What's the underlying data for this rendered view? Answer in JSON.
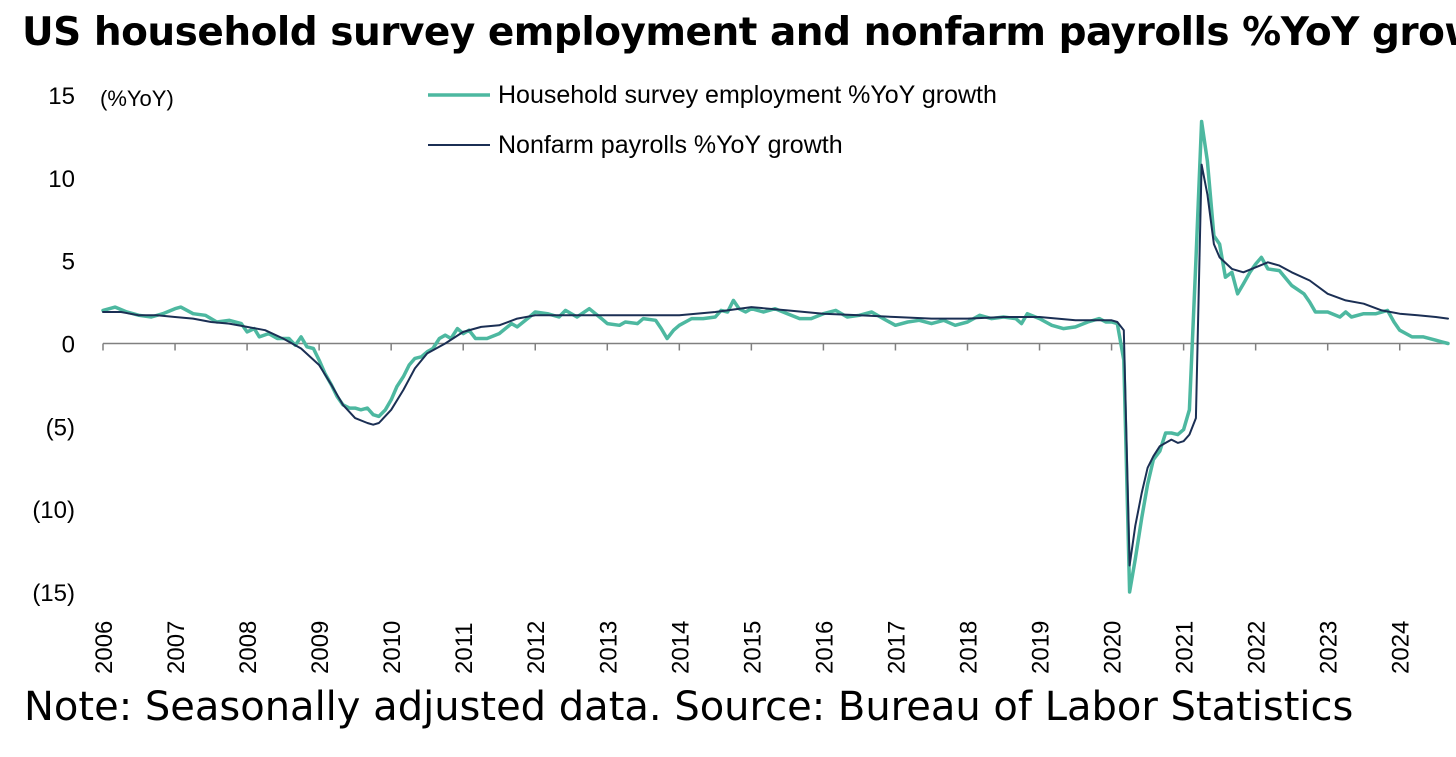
{
  "title": "US household survey employment and nonfarm payrolls %YoY growth",
  "note": "Note: Seasonally adjusted data. Source: Bureau of Labor Statistics",
  "colors": {
    "household": "#4db8a0",
    "nonfarm": "#1b2f54",
    "axis": "#808080"
  },
  "chart_data": {
    "type": "line",
    "ylabel": "(%YoY)",
    "ylim": [
      -15,
      15
    ],
    "yticks": [
      15,
      10,
      5,
      0,
      -5,
      -10,
      -15
    ],
    "ytick_labels": [
      "15",
      "10",
      "5",
      "0",
      "(5)",
      "(10)",
      "(15)"
    ],
    "xlim": [
      2006.0,
      2024.67
    ],
    "xticks": [
      "2006",
      "2007",
      "2008",
      "2009",
      "2010",
      "2011",
      "2012",
      "2013",
      "2014",
      "2015",
      "2016",
      "2017",
      "2018",
      "2019",
      "2020",
      "2021",
      "2022",
      "2023",
      "2024"
    ],
    "legend_position": "top-center",
    "series": [
      {
        "name": "Household survey employment %YoY growth",
        "color": "#4db8a0",
        "points": [
          [
            2006.0,
            2.0
          ],
          [
            2006.17,
            2.2
          ],
          [
            2006.33,
            1.9
          ],
          [
            2006.5,
            1.7
          ],
          [
            2006.67,
            1.6
          ],
          [
            2006.83,
            1.8
          ],
          [
            2007.0,
            2.1
          ],
          [
            2007.08,
            2.2
          ],
          [
            2007.25,
            1.8
          ],
          [
            2007.42,
            1.7
          ],
          [
            2007.58,
            1.3
          ],
          [
            2007.75,
            1.4
          ],
          [
            2007.92,
            1.2
          ],
          [
            2008.0,
            0.7
          ],
          [
            2008.1,
            0.9
          ],
          [
            2008.17,
            0.4
          ],
          [
            2008.3,
            0.6
          ],
          [
            2008.42,
            0.3
          ],
          [
            2008.58,
            0.3
          ],
          [
            2008.67,
            -0.1
          ],
          [
            2008.75,
            0.4
          ],
          [
            2008.83,
            -0.2
          ],
          [
            2008.92,
            -0.3
          ],
          [
            2009.0,
            -1.0
          ],
          [
            2009.08,
            -1.8
          ],
          [
            2009.17,
            -2.5
          ],
          [
            2009.25,
            -3.2
          ],
          [
            2009.33,
            -3.7
          ],
          [
            2009.42,
            -3.9
          ],
          [
            2009.5,
            -3.9
          ],
          [
            2009.58,
            -4.0
          ],
          [
            2009.67,
            -3.9
          ],
          [
            2009.75,
            -4.3
          ],
          [
            2009.83,
            -4.4
          ],
          [
            2009.92,
            -4.0
          ],
          [
            2010.0,
            -3.4
          ],
          [
            2010.08,
            -2.6
          ],
          [
            2010.17,
            -2.0
          ],
          [
            2010.25,
            -1.3
          ],
          [
            2010.33,
            -0.9
          ],
          [
            2010.42,
            -0.8
          ],
          [
            2010.5,
            -0.5
          ],
          [
            2010.58,
            -0.3
          ],
          [
            2010.67,
            0.3
          ],
          [
            2010.75,
            0.5
          ],
          [
            2010.83,
            0.3
          ],
          [
            2010.92,
            0.9
          ],
          [
            2011.0,
            0.6
          ],
          [
            2011.08,
            0.8
          ],
          [
            2011.17,
            0.3
          ],
          [
            2011.33,
            0.3
          ],
          [
            2011.5,
            0.6
          ],
          [
            2011.67,
            1.2
          ],
          [
            2011.75,
            1.0
          ],
          [
            2011.92,
            1.6
          ],
          [
            2012.0,
            1.9
          ],
          [
            2012.17,
            1.8
          ],
          [
            2012.33,
            1.6
          ],
          [
            2012.42,
            2.0
          ],
          [
            2012.58,
            1.6
          ],
          [
            2012.75,
            2.1
          ],
          [
            2012.92,
            1.5
          ],
          [
            2013.0,
            1.2
          ],
          [
            2013.17,
            1.1
          ],
          [
            2013.25,
            1.3
          ],
          [
            2013.42,
            1.2
          ],
          [
            2013.5,
            1.5
          ],
          [
            2013.67,
            1.4
          ],
          [
            2013.75,
            0.9
          ],
          [
            2013.83,
            0.3
          ],
          [
            2013.92,
            0.8
          ],
          [
            2014.0,
            1.1
          ],
          [
            2014.17,
            1.5
          ],
          [
            2014.33,
            1.5
          ],
          [
            2014.5,
            1.6
          ],
          [
            2014.58,
            2.0
          ],
          [
            2014.67,
            1.9
          ],
          [
            2014.75,
            2.6
          ],
          [
            2014.83,
            2.1
          ],
          [
            2014.92,
            1.9
          ],
          [
            2015.0,
            2.1
          ],
          [
            2015.17,
            1.9
          ],
          [
            2015.33,
            2.1
          ],
          [
            2015.5,
            1.8
          ],
          [
            2015.67,
            1.5
          ],
          [
            2015.83,
            1.5
          ],
          [
            2016.0,
            1.8
          ],
          [
            2016.17,
            2.0
          ],
          [
            2016.33,
            1.6
          ],
          [
            2016.5,
            1.7
          ],
          [
            2016.67,
            1.9
          ],
          [
            2016.83,
            1.5
          ],
          [
            2017.0,
            1.1
          ],
          [
            2017.17,
            1.3
          ],
          [
            2017.33,
            1.4
          ],
          [
            2017.5,
            1.2
          ],
          [
            2017.67,
            1.4
          ],
          [
            2017.83,
            1.1
          ],
          [
            2018.0,
            1.3
          ],
          [
            2018.17,
            1.7
          ],
          [
            2018.33,
            1.5
          ],
          [
            2018.5,
            1.6
          ],
          [
            2018.67,
            1.5
          ],
          [
            2018.75,
            1.2
          ],
          [
            2018.83,
            1.8
          ],
          [
            2019.0,
            1.5
          ],
          [
            2019.17,
            1.1
          ],
          [
            2019.33,
            0.9
          ],
          [
            2019.5,
            1.0
          ],
          [
            2019.67,
            1.3
          ],
          [
            2019.83,
            1.5
          ],
          [
            2019.92,
            1.3
          ],
          [
            2020.0,
            1.3
          ],
          [
            2020.08,
            1.2
          ],
          [
            2020.17,
            -1.0
          ],
          [
            2020.25,
            -15.0
          ],
          [
            2020.33,
            -13.0
          ],
          [
            2020.42,
            -10.5
          ],
          [
            2020.5,
            -8.5
          ],
          [
            2020.58,
            -7.0
          ],
          [
            2020.67,
            -6.5
          ],
          [
            2020.75,
            -5.4
          ],
          [
            2020.83,
            -5.4
          ],
          [
            2020.92,
            -5.5
          ],
          [
            2021.0,
            -5.2
          ],
          [
            2021.08,
            -4.0
          ],
          [
            2021.17,
            5.0
          ],
          [
            2021.25,
            13.4
          ],
          [
            2021.33,
            11.0
          ],
          [
            2021.42,
            6.5
          ],
          [
            2021.5,
            6.0
          ],
          [
            2021.58,
            4.0
          ],
          [
            2021.67,
            4.3
          ],
          [
            2021.75,
            3.0
          ],
          [
            2021.83,
            3.6
          ],
          [
            2021.92,
            4.3
          ],
          [
            2022.0,
            4.8
          ],
          [
            2022.08,
            5.2
          ],
          [
            2022.17,
            4.5
          ],
          [
            2022.33,
            4.4
          ],
          [
            2022.5,
            3.5
          ],
          [
            2022.67,
            3.0
          ],
          [
            2022.75,
            2.5
          ],
          [
            2022.83,
            1.9
          ],
          [
            2023.0,
            1.9
          ],
          [
            2023.17,
            1.6
          ],
          [
            2023.25,
            1.9
          ],
          [
            2023.33,
            1.6
          ],
          [
            2023.5,
            1.8
          ],
          [
            2023.67,
            1.8
          ],
          [
            2023.83,
            2.0
          ],
          [
            2023.92,
            1.3
          ],
          [
            2024.0,
            0.8
          ],
          [
            2024.17,
            0.4
          ],
          [
            2024.33,
            0.4
          ],
          [
            2024.5,
            0.2
          ],
          [
            2024.58,
            0.1
          ],
          [
            2024.67,
            0.0
          ]
        ]
      },
      {
        "name": "Nonfarm payrolls %YoY growth",
        "color": "#1b2f54",
        "points": [
          [
            2006.0,
            1.9
          ],
          [
            2006.25,
            1.9
          ],
          [
            2006.5,
            1.7
          ],
          [
            2006.75,
            1.7
          ],
          [
            2007.0,
            1.6
          ],
          [
            2007.25,
            1.5
          ],
          [
            2007.5,
            1.3
          ],
          [
            2007.75,
            1.2
          ],
          [
            2008.0,
            1.0
          ],
          [
            2008.25,
            0.8
          ],
          [
            2008.5,
            0.3
          ],
          [
            2008.75,
            -0.3
          ],
          [
            2009.0,
            -1.3
          ],
          [
            2009.17,
            -2.5
          ],
          [
            2009.33,
            -3.7
          ],
          [
            2009.5,
            -4.5
          ],
          [
            2009.67,
            -4.8
          ],
          [
            2009.75,
            -4.9
          ],
          [
            2009.83,
            -4.8
          ],
          [
            2010.0,
            -4.0
          ],
          [
            2010.17,
            -2.8
          ],
          [
            2010.33,
            -1.5
          ],
          [
            2010.5,
            -0.6
          ],
          [
            2010.75,
            0.0
          ],
          [
            2011.0,
            0.7
          ],
          [
            2011.25,
            1.0
          ],
          [
            2011.5,
            1.1
          ],
          [
            2011.75,
            1.5
          ],
          [
            2012.0,
            1.7
          ],
          [
            2012.5,
            1.7
          ],
          [
            2013.0,
            1.7
          ],
          [
            2013.5,
            1.7
          ],
          [
            2014.0,
            1.7
          ],
          [
            2014.5,
            1.9
          ],
          [
            2015.0,
            2.2
          ],
          [
            2015.5,
            2.0
          ],
          [
            2016.0,
            1.8
          ],
          [
            2016.5,
            1.7
          ],
          [
            2017.0,
            1.6
          ],
          [
            2017.5,
            1.5
          ],
          [
            2018.0,
            1.5
          ],
          [
            2018.5,
            1.6
          ],
          [
            2019.0,
            1.6
          ],
          [
            2019.5,
            1.4
          ],
          [
            2020.0,
            1.4
          ],
          [
            2020.08,
            1.3
          ],
          [
            2020.17,
            0.8
          ],
          [
            2020.25,
            -13.4
          ],
          [
            2020.33,
            -11.0
          ],
          [
            2020.42,
            -9.0
          ],
          [
            2020.5,
            -7.5
          ],
          [
            2020.58,
            -6.8
          ],
          [
            2020.67,
            -6.2
          ],
          [
            2020.75,
            -6.0
          ],
          [
            2020.83,
            -5.8
          ],
          [
            2020.92,
            -6.0
          ],
          [
            2021.0,
            -5.9
          ],
          [
            2021.08,
            -5.5
          ],
          [
            2021.17,
            -4.5
          ],
          [
            2021.25,
            10.8
          ],
          [
            2021.33,
            9.0
          ],
          [
            2021.42,
            6.0
          ],
          [
            2021.5,
            5.2
          ],
          [
            2021.67,
            4.5
          ],
          [
            2021.83,
            4.3
          ],
          [
            2022.0,
            4.6
          ],
          [
            2022.17,
            4.9
          ],
          [
            2022.33,
            4.7
          ],
          [
            2022.5,
            4.3
          ],
          [
            2022.75,
            3.8
          ],
          [
            2023.0,
            3.0
          ],
          [
            2023.25,
            2.6
          ],
          [
            2023.5,
            2.4
          ],
          [
            2023.75,
            2.0
          ],
          [
            2024.0,
            1.8
          ],
          [
            2024.25,
            1.7
          ],
          [
            2024.5,
            1.6
          ],
          [
            2024.67,
            1.5
          ]
        ]
      }
    ]
  }
}
